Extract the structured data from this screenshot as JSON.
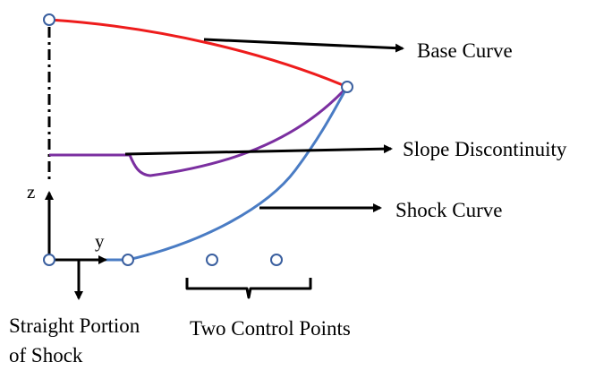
{
  "labels": {
    "base_curve": "Base Curve",
    "slope_discontinuity": "Slope Discontinuity",
    "shock_curve": "Shock Curve",
    "axis_z": "z",
    "axis_y": "y",
    "straight_portion_line1": "Straight Portion",
    "straight_portion_line2": "of Shock",
    "two_control_points": "Two Control Points"
  },
  "colors": {
    "base_curve": "#ee1c1c",
    "slope_discontinuity": "#7b2fa0",
    "shock_curve": "#4a7cc4",
    "point_stroke": "#3a5f9f",
    "arrows": "#000000"
  }
}
